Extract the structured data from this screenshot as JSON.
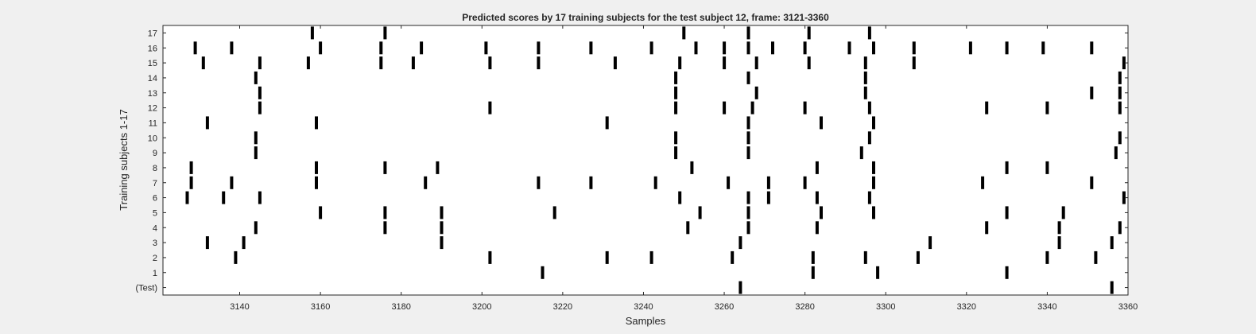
{
  "chart_data": {
    "type": "raster",
    "title": "Predicted scores by 17 training subjects for the test subject 12, frame: 3121-3360",
    "xlabel": "Samples",
    "ylabel": "Training subjects 1-17",
    "xlim": [
      3121,
      3360
    ],
    "xticks": [
      3140,
      3160,
      3180,
      3200,
      3220,
      3240,
      3260,
      3280,
      3300,
      3320,
      3340,
      3360
    ],
    "row_labels": [
      "(Test)",
      "1",
      "2",
      "3",
      "4",
      "5",
      "6",
      "7",
      "8",
      "9",
      "10",
      "11",
      "12",
      "13",
      "14",
      "15",
      "16",
      "17"
    ],
    "mark_color": "#000000",
    "grid": false,
    "rows": [
      {
        "label": "(Test)",
        "x": [
          3264,
          3356
        ]
      },
      {
        "label": "1",
        "x": [
          3215,
          3282,
          3298,
          3330
        ]
      },
      {
        "label": "2",
        "x": [
          3139,
          3202,
          3231,
          3242,
          3262,
          3282,
          3295,
          3308,
          3340,
          3352
        ]
      },
      {
        "label": "3",
        "x": [
          3132,
          3141,
          3190,
          3264,
          3311,
          3343,
          3356
        ]
      },
      {
        "label": "4",
        "x": [
          3144,
          3176,
          3190,
          3251,
          3266,
          3283,
          3325,
          3343,
          3358
        ]
      },
      {
        "label": "5",
        "x": [
          3160,
          3176,
          3190,
          3218,
          3254,
          3266,
          3284,
          3297,
          3330,
          3344
        ]
      },
      {
        "label": "6",
        "x": [
          3127,
          3136,
          3145,
          3249,
          3266,
          3271,
          3283,
          3296,
          3359
        ]
      },
      {
        "label": "7",
        "x": [
          3128,
          3138,
          3159,
          3186,
          3214,
          3227,
          3243,
          3261,
          3271,
          3280,
          3297,
          3324,
          3351
        ]
      },
      {
        "label": "8",
        "x": [
          3128,
          3159,
          3176,
          3189,
          3252,
          3283,
          3297,
          3330,
          3340
        ]
      },
      {
        "label": "9",
        "x": [
          3144,
          3248,
          3266,
          3294,
          3357
        ]
      },
      {
        "label": "10",
        "x": [
          3144,
          3248,
          3266,
          3296,
          3358
        ]
      },
      {
        "label": "11",
        "x": [
          3132,
          3159,
          3231,
          3266,
          3284,
          3297
        ]
      },
      {
        "label": "12",
        "x": [
          3145,
          3202,
          3248,
          3260,
          3267,
          3280,
          3296,
          3325,
          3340,
          3358
        ]
      },
      {
        "label": "13",
        "x": [
          3145,
          3248,
          3268,
          3295,
          3351,
          3358
        ]
      },
      {
        "label": "14",
        "x": [
          3144,
          3248,
          3266,
          3295,
          3358
        ]
      },
      {
        "label": "15",
        "x": [
          3131,
          3145,
          3157,
          3175,
          3183,
          3202,
          3214,
          3233,
          3249,
          3260,
          3268,
          3281,
          3295,
          3307,
          3359
        ]
      },
      {
        "label": "16",
        "x": [
          3129,
          3138,
          3160,
          3175,
          3185,
          3201,
          3214,
          3227,
          3242,
          3253,
          3260,
          3266,
          3272,
          3280,
          3291,
          3297,
          3307,
          3321,
          3330,
          3339,
          3351
        ]
      },
      {
        "label": "17",
        "x": [
          3158,
          3176,
          3250,
          3266,
          3281,
          3296
        ]
      }
    ]
  }
}
